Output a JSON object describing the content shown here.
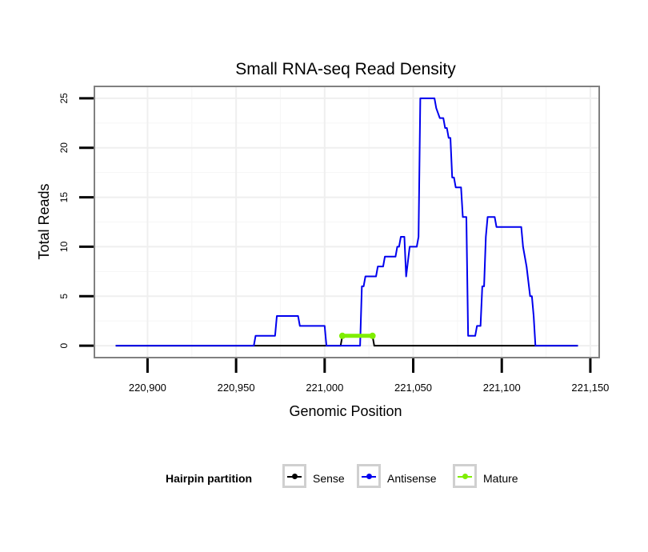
{
  "chart_data": {
    "type": "line",
    "title": "Small RNA-seq Read Density",
    "xlabel": "Genomic Position",
    "ylabel": "Total Reads",
    "xlim": [
      220870,
      221155
    ],
    "ylim": [
      -1.2,
      26.2
    ],
    "x_ticks": [
      220900,
      220950,
      221000,
      221050,
      221100,
      221150
    ],
    "x_tick_labels": [
      "220,900",
      "220,950",
      "221,000",
      "221,050",
      "221,100",
      "221,150"
    ],
    "y_ticks": [
      0,
      5,
      10,
      15,
      20,
      25
    ],
    "y_tick_labels": [
      "0",
      "5",
      "10",
      "15",
      "20",
      "25"
    ],
    "legend": {
      "title": "Hairpin partition",
      "position": "bottom"
    },
    "series": [
      {
        "name": "Sense",
        "color": "#000000",
        "points": [
          [
            220882,
            0
          ],
          [
            221009,
            0
          ],
          [
            221010,
            1
          ],
          [
            221027,
            1
          ],
          [
            221028,
            0
          ],
          [
            221143,
            0
          ]
        ]
      },
      {
        "name": "Antisense",
        "color": "#0000ee",
        "points": [
          [
            220882,
            0
          ],
          [
            220960,
            0
          ],
          [
            220961,
            1
          ],
          [
            220972,
            1
          ],
          [
            220973,
            3
          ],
          [
            220985,
            3
          ],
          [
            220986,
            2
          ],
          [
            221000,
            2
          ],
          [
            221001,
            0
          ],
          [
            221020,
            0
          ],
          [
            221021,
            6
          ],
          [
            221022,
            6
          ],
          [
            221023,
            7
          ],
          [
            221029,
            7
          ],
          [
            221030,
            8
          ],
          [
            221033,
            8
          ],
          [
            221034,
            9
          ],
          [
            221040,
            9
          ],
          [
            221041,
            10
          ],
          [
            221042,
            10
          ],
          [
            221043,
            11
          ],
          [
            221045,
            11
          ],
          [
            221046,
            7
          ],
          [
            221048,
            10
          ],
          [
            221052,
            10
          ],
          [
            221053,
            11
          ],
          [
            221054,
            25
          ],
          [
            221062,
            25
          ],
          [
            221063,
            24
          ],
          [
            221065,
            23
          ],
          [
            221067,
            23
          ],
          [
            221068,
            22
          ],
          [
            221069,
            22
          ],
          [
            221070,
            21
          ],
          [
            221071,
            21
          ],
          [
            221072,
            17
          ],
          [
            221073,
            17
          ],
          [
            221074,
            16
          ],
          [
            221077,
            16
          ],
          [
            221078,
            13
          ],
          [
            221080,
            13
          ],
          [
            221081,
            1
          ],
          [
            221085,
            1
          ],
          [
            221086,
            2
          ],
          [
            221088,
            2
          ],
          [
            221089,
            6
          ],
          [
            221090,
            6
          ],
          [
            221091,
            11
          ],
          [
            221092,
            13
          ],
          [
            221096,
            13
          ],
          [
            221097,
            12
          ],
          [
            221111,
            12
          ],
          [
            221112,
            10
          ],
          [
            221114,
            8
          ],
          [
            221116,
            5
          ],
          [
            221117,
            5
          ],
          [
            221118,
            3
          ],
          [
            221119,
            0
          ],
          [
            221143,
            0
          ]
        ]
      },
      {
        "name": "Mature",
        "color": "#7fee00",
        "points": [
          [
            221010,
            1
          ],
          [
            221027,
            1
          ]
        ]
      }
    ]
  }
}
